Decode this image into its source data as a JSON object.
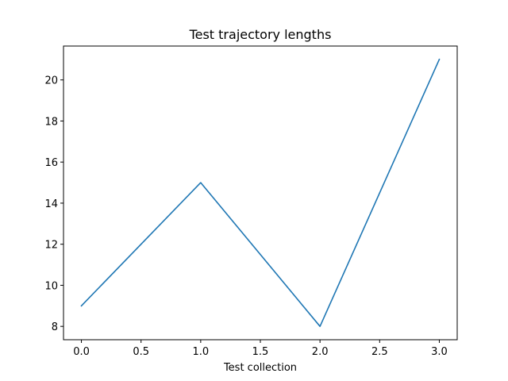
{
  "chart_data": {
    "type": "line",
    "title": "Test trajectory lengths",
    "xlabel": "Test collection",
    "ylabel": "",
    "x": [
      0,
      1,
      2,
      3
    ],
    "series": [
      {
        "values": [
          9,
          15,
          8,
          21
        ],
        "color": "#1f77b4"
      }
    ],
    "xlim": [
      -0.15,
      3.15
    ],
    "ylim": [
      7.35,
      21.65
    ],
    "xticks": [
      0.0,
      0.5,
      1.0,
      1.5,
      2.0,
      2.5,
      3.0
    ],
    "xtick_labels": [
      "0.0",
      "0.5",
      "1.0",
      "1.5",
      "2.0",
      "2.5",
      "3.0"
    ],
    "yticks": [
      8,
      10,
      12,
      14,
      16,
      18,
      20
    ],
    "ytick_labels": [
      "8",
      "10",
      "12",
      "14",
      "16",
      "18",
      "20"
    ],
    "grid": false,
    "legend": "none"
  }
}
